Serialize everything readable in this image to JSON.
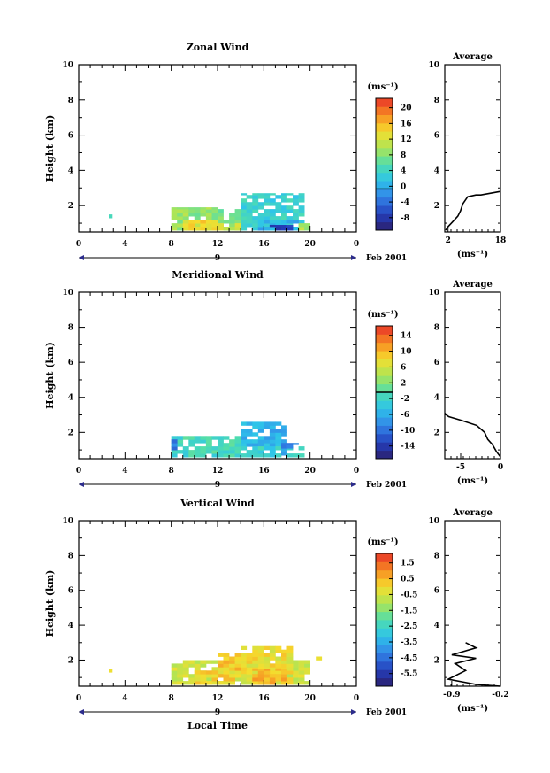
{
  "chart_data": [
    {
      "type": "heatmap",
      "title": "Zonal Wind",
      "ylabel": "Height (km)",
      "xlim": [
        0,
        24
      ],
      "ylim": [
        0.5,
        10
      ],
      "xticks": [
        "0",
        "4",
        "8",
        "12",
        "16",
        "20",
        "0"
      ],
      "yticks": [
        "2",
        "4",
        "6",
        "8",
        "10"
      ],
      "date_label": "Feb 2001",
      "date_day": "9",
      "colorbar": {
        "unit": "(ms⁻¹)",
        "ticks": [
          "20",
          "16",
          "12",
          "8",
          "4",
          "0",
          "-4",
          "-8"
        ],
        "vmin": -10,
        "vmax": 22,
        "contour_level": 0
      },
      "data_regions": [
        {
          "x": [
            2.6,
            2.9
          ],
          "y": [
            1.3,
            1.5
          ],
          "value": 6
        },
        {
          "x": [
            8.0,
            12.0
          ],
          "y": [
            0.6,
            1.9
          ],
          "value": 9
        },
        {
          "x": [
            9.0,
            12.0
          ],
          "y": [
            0.6,
            1.2
          ],
          "value": 14
        },
        {
          "x": [
            12.0,
            14.0
          ],
          "y": [
            0.6,
            1.8
          ],
          "value": 8
        },
        {
          "x": [
            12.0,
            14.0
          ],
          "y": [
            0.6,
            1.0
          ],
          "value": 12
        },
        {
          "x": [
            14.0,
            19.5
          ],
          "y": [
            0.6,
            2.7
          ],
          "value": 4
        },
        {
          "x": [
            15.5,
            19.0
          ],
          "y": [
            0.6,
            1.2
          ],
          "value": 1
        },
        {
          "x": [
            16.5,
            18.5
          ],
          "y": [
            0.6,
            0.9
          ],
          "value": -6
        },
        {
          "x": [
            19.0,
            20.0
          ],
          "y": [
            0.6,
            1.0
          ],
          "value": 10
        }
      ],
      "profile": {
        "title": "Average",
        "xlabel": "(ms⁻¹)",
        "xticks": [
          "2",
          "18"
        ],
        "xlim": [
          1,
          18
        ],
        "ylim": [
          0.5,
          10
        ],
        "yticks": [
          "2",
          "4",
          "6",
          "8",
          "10"
        ],
        "x": [
          1.3,
          2.0,
          3.5,
          5.0,
          5.8,
          6.5,
          8.0,
          10.5,
          12.0,
          18.0
        ],
        "y": [
          0.6,
          0.8,
          1.1,
          1.4,
          1.7,
          2.1,
          2.5,
          2.6,
          2.6,
          2.8
        ]
      }
    },
    {
      "type": "heatmap",
      "title": "Meridional Wind",
      "ylabel": "Height (km)",
      "xlim": [
        0,
        24
      ],
      "ylim": [
        0.5,
        10
      ],
      "xticks": [
        "0",
        "4",
        "8",
        "12",
        "16",
        "20",
        "0"
      ],
      "yticks": [
        "2",
        "4",
        "6",
        "8",
        "10"
      ],
      "date_label": "Feb 2001",
      "date_day": "9",
      "colorbar": {
        "unit": "(ms⁻¹)",
        "ticks": [
          "14",
          "10",
          "6",
          "2",
          "-2",
          "-6",
          "-10",
          "-14"
        ],
        "vmin": -16,
        "vmax": 16,
        "contour_level": 0
      },
      "data_regions": [
        {
          "x": [
            8.0,
            14.0
          ],
          "y": [
            0.6,
            1.8
          ],
          "value": -1
        },
        {
          "x": [
            8.0,
            8.5
          ],
          "y": [
            1.0,
            1.6
          ],
          "value": -9
        },
        {
          "x": [
            14.0,
            18.0
          ],
          "y": [
            1.2,
            2.6
          ],
          "value": -5
        },
        {
          "x": [
            14.0,
            19.5
          ],
          "y": [
            0.6,
            1.2
          ],
          "value": -2
        },
        {
          "x": [
            17.5,
            19.0
          ],
          "y": [
            0.7,
            1.4
          ],
          "value": -7
        }
      ],
      "profile": {
        "title": "Average",
        "xlabel": "(ms⁻¹)",
        "xticks": [
          "-5",
          "0"
        ],
        "xlim": [
          -7,
          0
        ],
        "ylim": [
          0.5,
          10
        ],
        "yticks": [
          "2",
          "4",
          "6",
          "8",
          "10"
        ],
        "x": [
          0.0,
          -0.5,
          -1.0,
          -1.6,
          -2.0,
          -3.0,
          -5.0,
          -6.5,
          -6.8,
          -7.0
        ],
        "y": [
          0.6,
          0.9,
          1.3,
          1.6,
          2.0,
          2.4,
          2.7,
          2.9,
          3.0,
          3.1
        ]
      }
    },
    {
      "type": "heatmap",
      "title": "Vertical Wind",
      "ylabel": "Height (km)",
      "xlabel": "Local Time",
      "xlim": [
        0,
        24
      ],
      "ylim": [
        0.5,
        10
      ],
      "xticks": [
        "0",
        "4",
        "8",
        "12",
        "16",
        "20",
        "0"
      ],
      "yticks": [
        "2",
        "4",
        "6",
        "8",
        "10"
      ],
      "date_label": "Feb 2001",
      "date_day": "9",
      "colorbar": {
        "unit": "(ms⁻¹)",
        "ticks": [
          "1.5",
          "0.5",
          "-0.5",
          "-1.5",
          "-2.5",
          "-3.5",
          "-4.5",
          "-5.5"
        ],
        "vmin": -6,
        "vmax": 2.2
      },
      "data_regions": [
        {
          "x": [
            2.6,
            2.9
          ],
          "y": [
            1.3,
            1.5
          ],
          "value": -0.3
        },
        {
          "x": [
            8.0,
            20.0
          ],
          "y": [
            0.6,
            2.0
          ],
          "value": -0.4
        },
        {
          "x": [
            10.0,
            14.0
          ],
          "y": [
            0.6,
            1.4
          ],
          "value": 0.2
        },
        {
          "x": [
            12.0,
            16.0
          ],
          "y": [
            1.0,
            2.4
          ],
          "value": 0.4
        },
        {
          "x": [
            14.0,
            18.5
          ],
          "y": [
            0.6,
            2.8
          ],
          "value": 0.0
        },
        {
          "x": [
            15.0,
            18.0
          ],
          "y": [
            0.6,
            1.5
          ],
          "value": 0.6
        },
        {
          "x": [
            20.5,
            21.0
          ],
          "y": [
            2.0,
            2.2
          ],
          "value": 0.5
        }
      ],
      "profile": {
        "title": "Average",
        "xlabel": "(ms⁻¹)",
        "xticks": [
          "-0.9",
          "-0.2"
        ],
        "xlim": [
          -1.0,
          -0.2
        ],
        "ylim": [
          0.5,
          10
        ],
        "yticks": [
          "2",
          "4",
          "6",
          "8",
          "10"
        ],
        "x": [
          -0.2,
          -0.55,
          -0.95,
          -0.7,
          -0.85,
          -0.55,
          -0.9,
          -0.55,
          -0.7
        ],
        "y": [
          0.5,
          0.6,
          0.9,
          1.4,
          1.8,
          2.1,
          2.3,
          2.7,
          3.0
        ]
      }
    }
  ]
}
